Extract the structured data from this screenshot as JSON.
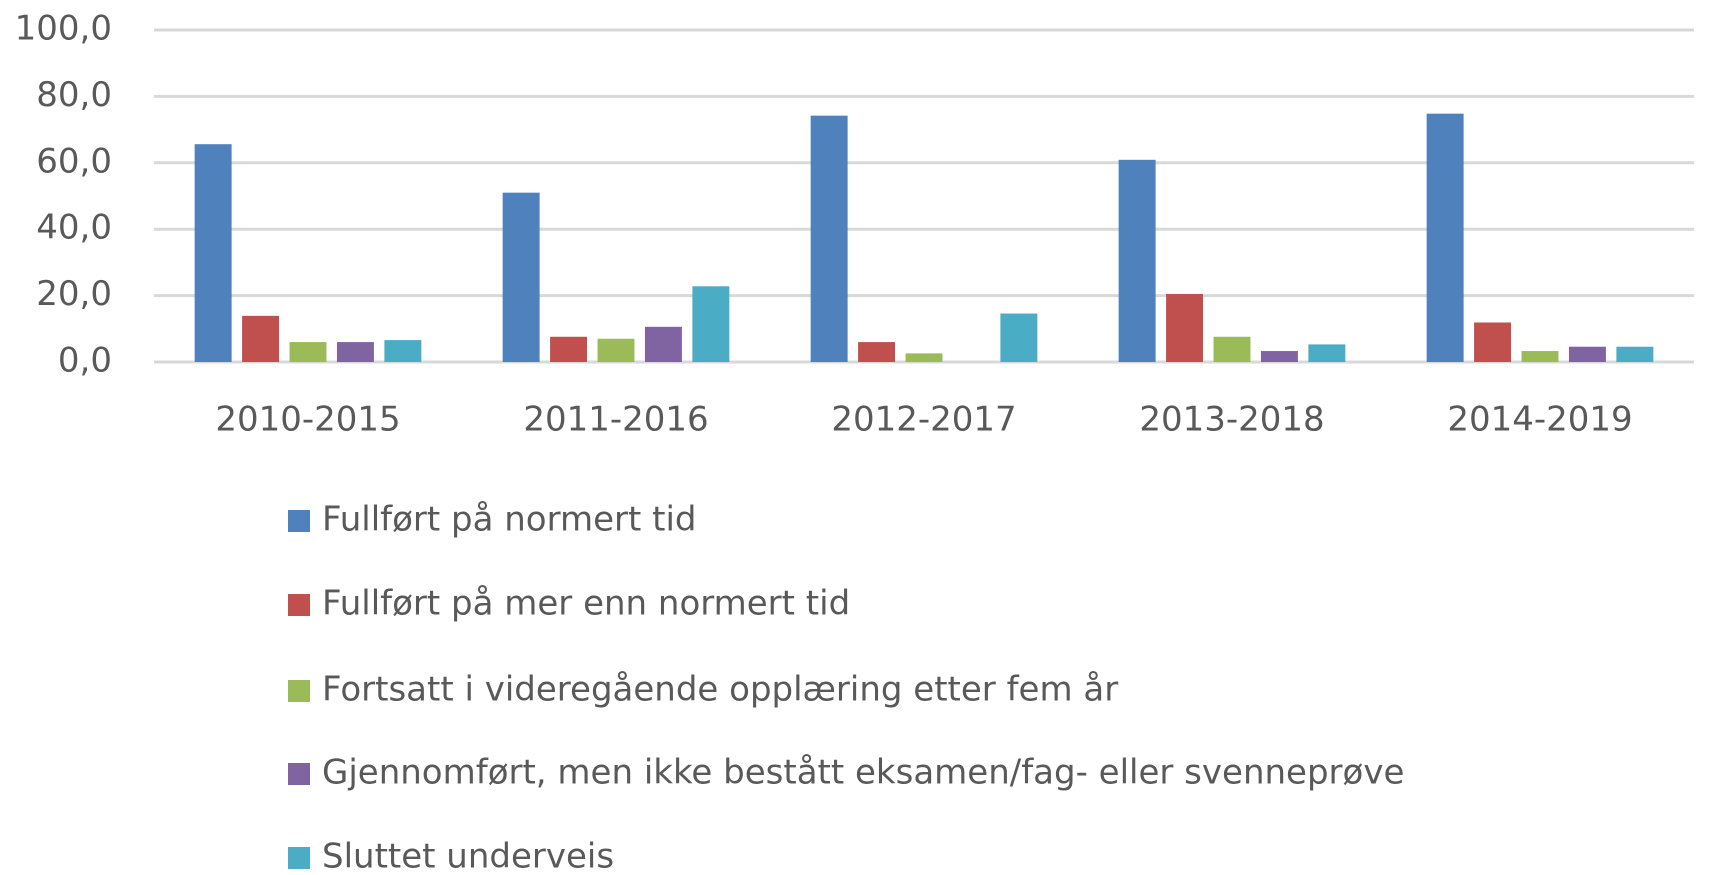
{
  "chart_data": {
    "type": "bar",
    "categories": [
      "2010-2015",
      "2011-2016",
      "2012-2017",
      "2013-2018",
      "2014-2019"
    ],
    "series": [
      {
        "name": "Fullført på normert tid",
        "color": "#4f81bd",
        "values": [
          65.6,
          51.0,
          74.2,
          60.9,
          74.8
        ]
      },
      {
        "name": "Fullført på mer enn normert tid",
        "color": "#c0504d",
        "values": [
          13.9,
          7.6,
          6.0,
          20.5,
          11.9
        ]
      },
      {
        "name": "Fortsatt i videregående opplæring etter fem år",
        "color": "#9bbb59",
        "values": [
          6.0,
          7.0,
          2.6,
          7.6,
          3.3
        ]
      },
      {
        "name": "Gjennomført, men ikke bestått eksamen/fag- eller svenneprøve",
        "color": "#8064a2",
        "values": [
          6.0,
          10.6,
          0,
          3.3,
          4.6
        ]
      },
      {
        "name": "Sluttet underveis",
        "color": "#4bacc6",
        "values": [
          6.6,
          22.8,
          14.6,
          5.3,
          4.6
        ]
      }
    ],
    "ylim": [
      0,
      100
    ],
    "yticks": [
      {
        "value": 0,
        "label": "0,0"
      },
      {
        "value": 20,
        "label": "20,0"
      },
      {
        "value": 40,
        "label": "40,0"
      },
      {
        "value": 60,
        "label": "60,0"
      },
      {
        "value": 80,
        "label": "80,0"
      },
      {
        "value": 100,
        "label": "100,0"
      }
    ],
    "grid": true,
    "legend": "bottom"
  }
}
